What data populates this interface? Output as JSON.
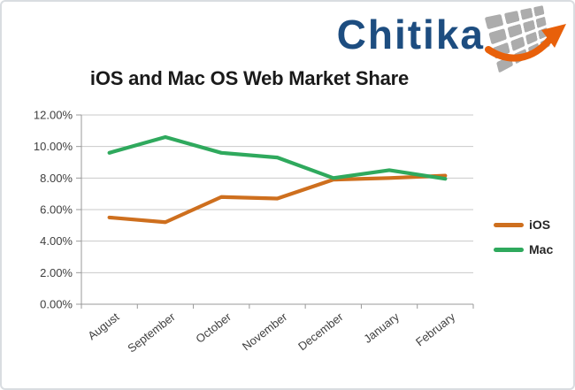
{
  "logo": {
    "brand": "Chitika",
    "brand_color": "#1D4D80",
    "arrow_color": "#E8600A",
    "tile_color": "#ACACAC"
  },
  "chart_data": {
    "type": "line",
    "title": "iOS and Mac OS Web Market Share",
    "categories": [
      "August",
      "September",
      "October",
      "November",
      "December",
      "January",
      "February"
    ],
    "series": [
      {
        "name": "iOS",
        "color": "#CE6F1E",
        "values": [
          5.5,
          5.2,
          6.8,
          6.7,
          7.9,
          8.0,
          8.15
        ]
      },
      {
        "name": "Mac",
        "color": "#2FA95D",
        "values": [
          9.6,
          10.6,
          9.6,
          9.3,
          8.0,
          8.5,
          7.95
        ]
      }
    ],
    "ylim": [
      0,
      12
    ],
    "y_tick_labels": [
      "0.00%",
      "2.00%",
      "4.00%",
      "6.00%",
      "8.00%",
      "10.00%",
      "12.00%"
    ],
    "grid": true,
    "legend_position": "right"
  },
  "colors": {
    "gridline": "#C9C9C9",
    "axis": "#999999",
    "tick_label": "#3F3F3F",
    "title_text": "#1A1A1A",
    "legend_text": "#262626"
  }
}
